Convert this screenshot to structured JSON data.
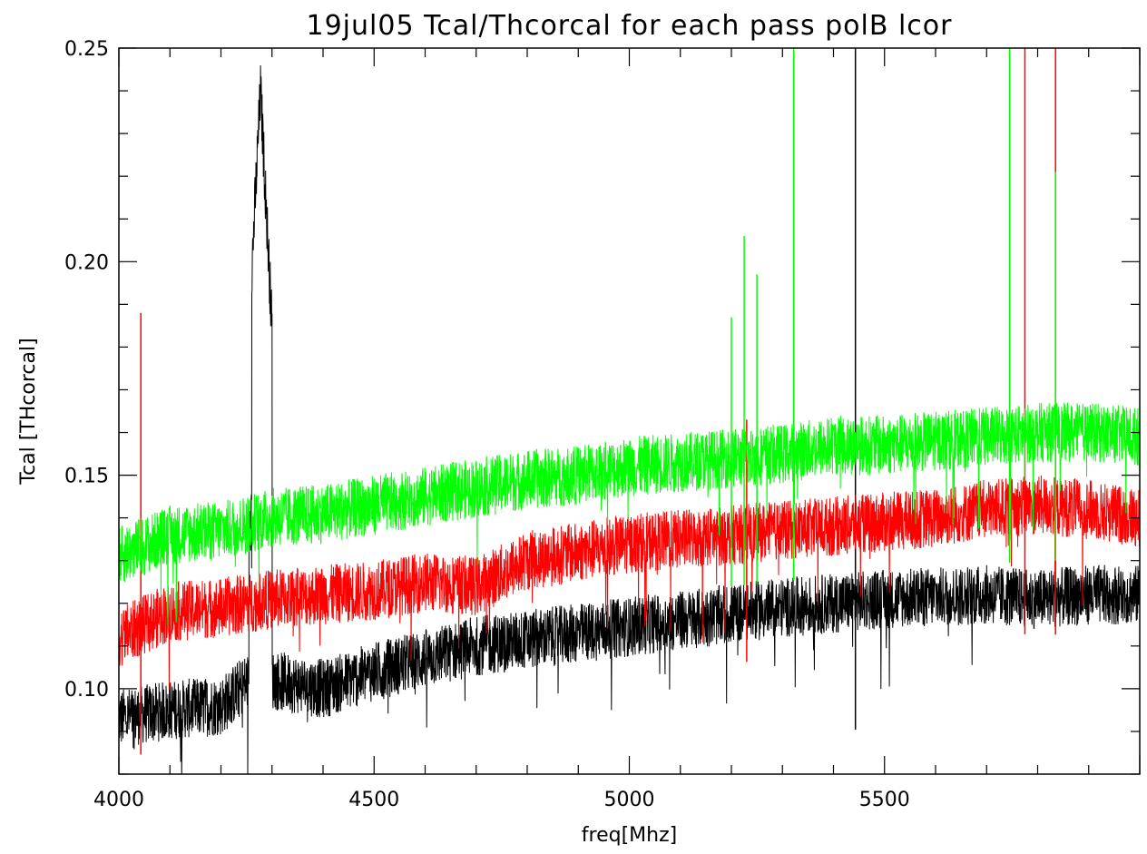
{
  "chart_data": {
    "type": "line",
    "title": "19jul05 Tcal/Thcorcal for each pass  polB lcor",
    "xlabel": "freq[Mhz]",
    "ylabel": "Tcal [THcorcal]",
    "xlim": [
      4000,
      6000
    ],
    "ylim": [
      0.08,
      0.25
    ],
    "x_ticks": [
      4000,
      4500,
      5000,
      5500
    ],
    "x_tick_labels": [
      "4000",
      "4500",
      "5000",
      "5500"
    ],
    "y_ticks": [
      0.1,
      0.15,
      0.2,
      0.25
    ],
    "y_tick_labels": [
      "0.10",
      "0.15",
      "0.20",
      "0.25"
    ],
    "grid": false,
    "series": [
      {
        "color": "#000000",
        "x": [
          4000,
          4100,
          4200,
          4255,
          4300,
          4400,
          4500,
          4700,
          4900,
          5100,
          5300,
          5500,
          5700,
          5800,
          5900,
          6000
        ],
        "values": [
          0.093,
          0.095,
          0.096,
          0.102,
          0.102,
          0.1,
          0.104,
          0.11,
          0.113,
          0.116,
          0.119,
          0.121,
          0.122,
          0.121,
          0.122,
          0.122
        ],
        "features": [
          {
            "x": [
              4255,
              4300
            ],
            "peak": 0.24
          },
          {
            "x": [
              5443
            ],
            "peak": 0.25
          }
        ]
      },
      {
        "color": "#ff0000",
        "x": [
          4000,
          4100,
          4200,
          4300,
          4400,
          4500,
          4600,
          4700,
          4800,
          4900,
          5000,
          5100,
          5200,
          5300,
          5400,
          5500,
          5600,
          5700,
          5800,
          5900,
          6000
        ],
        "values": [
          0.112,
          0.118,
          0.119,
          0.121,
          0.122,
          0.123,
          0.125,
          0.124,
          0.13,
          0.132,
          0.134,
          0.135,
          0.136,
          0.137,
          0.138,
          0.139,
          0.14,
          0.142,
          0.143,
          0.142,
          0.14
        ],
        "features": [
          {
            "x": [
              4043
            ],
            "peak": 0.188
          },
          {
            "x": [
              5230
            ],
            "peak": 0.163
          },
          {
            "x": [
              5775
            ],
            "peak": 0.25
          },
          {
            "x": [
              5835
            ],
            "peak": 0.25
          }
        ]
      },
      {
        "color": "#00ff00",
        "x": [
          4000,
          4100,
          4200,
          4300,
          4400,
          4500,
          4600,
          4700,
          4800,
          4900,
          5000,
          5100,
          5200,
          5300,
          5400,
          5500,
          5600,
          5700,
          5800,
          5900,
          6000
        ],
        "values": [
          0.131,
          0.136,
          0.137,
          0.14,
          0.141,
          0.143,
          0.145,
          0.147,
          0.149,
          0.15,
          0.152,
          0.153,
          0.154,
          0.155,
          0.157,
          0.157,
          0.158,
          0.159,
          0.16,
          0.16,
          0.159
        ],
        "features": [
          {
            "x": [
              5200
            ],
            "peak": 0.187
          },
          {
            "x": [
              5225
            ],
            "peak": 0.206
          },
          {
            "x": [
              5250
            ],
            "peak": 0.197
          },
          {
            "x": [
              5322
            ],
            "peak": 0.25
          },
          {
            "x": [
              5745
            ],
            "peak": 0.25
          },
          {
            "x": [
              5835
            ],
            "peak": 0.221
          }
        ]
      }
    ]
  }
}
